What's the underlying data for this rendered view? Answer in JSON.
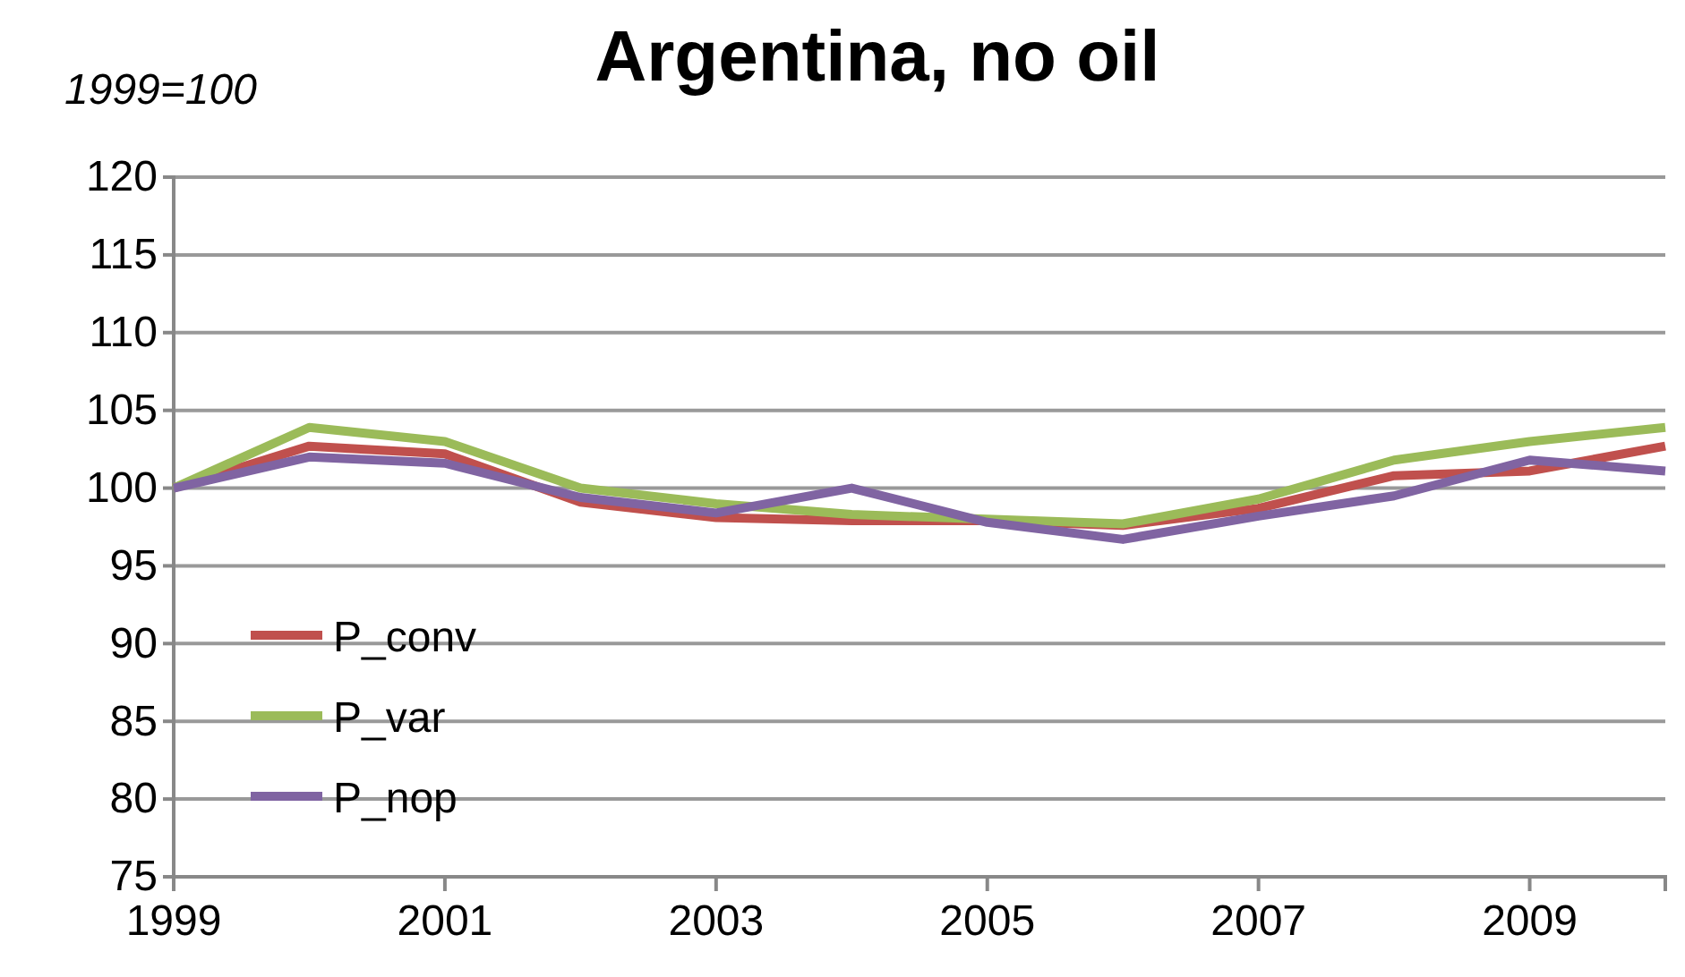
{
  "chart_data": {
    "type": "line",
    "title": "Argentina, no oil",
    "ylabel": "1999=100",
    "x": [
      1999,
      2000,
      2001,
      2002,
      2003,
      2004,
      2005,
      2006,
      2007,
      2008,
      2009,
      2010
    ],
    "series": [
      {
        "name": "P_conv",
        "color": "#c0504d",
        "values": [
          100,
          102.7,
          102.2,
          99.1,
          98.1,
          97.9,
          97.9,
          97.6,
          98.7,
          100.8,
          101.1,
          102.7
        ]
      },
      {
        "name": "P_var",
        "color": "#9bbb59",
        "values": [
          100,
          103.9,
          103.0,
          100.0,
          99.0,
          98.3,
          98.0,
          97.7,
          99.3,
          101.8,
          103.0,
          103.9
        ]
      },
      {
        "name": "P_nop",
        "color": "#8064a2",
        "values": [
          100,
          102.0,
          101.6,
          99.4,
          98.4,
          100.0,
          97.8,
          96.7,
          98.2,
          99.5,
          101.8,
          101.1
        ]
      }
    ],
    "xlim": [
      1999,
      2010
    ],
    "xticks": [
      1999,
      2001,
      2003,
      2005,
      2007,
      2009
    ],
    "ylim": [
      75,
      120
    ],
    "yticks": [
      75,
      80,
      85,
      90,
      95,
      100,
      105,
      110,
      115,
      120
    ],
    "grid": "y",
    "legend": "left",
    "marker": "none",
    "line_style": "solid"
  }
}
